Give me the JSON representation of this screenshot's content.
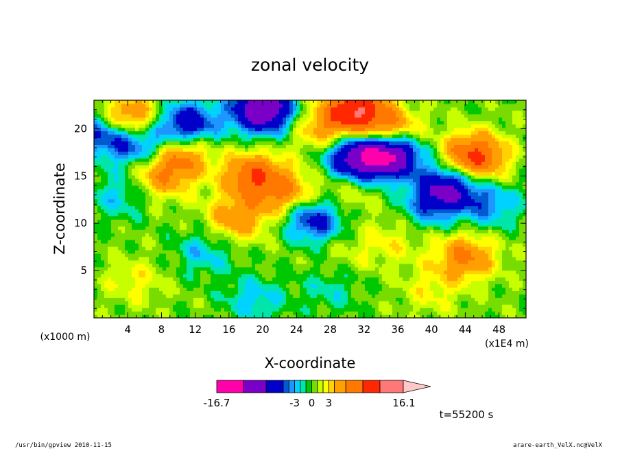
{
  "chart_data": {
    "type": "heatmap",
    "title": "zonal velocity",
    "xlabel": "X-coordinate",
    "ylabel": "Z-coordinate",
    "x_unit_left": "(x1000 m)",
    "x_unit_right": "(x1E4 m)",
    "xlim": [
      0,
      51.2
    ],
    "ylim": [
      0,
      23
    ],
    "x_ticks": [
      "4",
      "8",
      "12",
      "16",
      "20",
      "24",
      "28",
      "32",
      "36",
      "40",
      "44",
      "48"
    ],
    "y_ticks": [
      "5",
      "10",
      "15",
      "20"
    ],
    "colorbar": {
      "min_label": "-16.7",
      "max_label": "16.1",
      "mid_labels": [
        "-3",
        "0",
        "3"
      ],
      "levels": [
        -16.7,
        -12,
        -8,
        -5,
        -4,
        -3,
        -2,
        -1,
        0,
        1,
        2,
        3,
        4,
        6,
        9,
        12,
        16.1
      ],
      "colors": [
        "#ff00aa",
        "#7a00c8",
        "#0000c8",
        "#005ad2",
        "#1e96ff",
        "#00d2ff",
        "#00e6aa",
        "#00c800",
        "#78dc00",
        "#c8ff00",
        "#ffff00",
        "#ffd200",
        "#ffa000",
        "#ff7800",
        "#ff2800",
        "#ff7878",
        "#ffc8c8"
      ]
    },
    "field_features": [
      {
        "x": 20,
        "z": 22,
        "value": -12
      },
      {
        "x": 35,
        "z": 17.5,
        "value": -14
      },
      {
        "x": 31,
        "z": 17,
        "value": -9
      },
      {
        "x": 42,
        "z": 14,
        "value": -8
      },
      {
        "x": 11,
        "z": 20.5,
        "value": -8
      },
      {
        "x": 3,
        "z": 19,
        "value": -5
      },
      {
        "x": 7,
        "z": 18,
        "value": -5
      },
      {
        "x": 0.5,
        "z": 20,
        "value": -4
      },
      {
        "x": 26,
        "z": 10.5,
        "value": -7
      },
      {
        "x": 47,
        "z": 12,
        "value": -4
      },
      {
        "x": 40,
        "z": 12,
        "value": -4
      },
      {
        "x": 19,
        "z": 2,
        "value": -3
      },
      {
        "x": 13,
        "z": 7,
        "value": -3
      },
      {
        "x": 28,
        "z": 3,
        "value": -2
      },
      {
        "x": 3,
        "z": 13,
        "value": -3
      },
      {
        "x": 19,
        "z": 15,
        "value": 8
      },
      {
        "x": 23,
        "z": 13,
        "value": 5
      },
      {
        "x": 17,
        "z": 10.5,
        "value": 5
      },
      {
        "x": 31,
        "z": 22,
        "value": 11
      },
      {
        "x": 35,
        "z": 19.5,
        "value": 8
      },
      {
        "x": 45,
        "z": 17,
        "value": 10
      },
      {
        "x": 44,
        "z": 6.5,
        "value": 6
      },
      {
        "x": 4,
        "z": 21,
        "value": 8
      },
      {
        "x": 10,
        "z": 17.5,
        "value": 7
      },
      {
        "x": 8,
        "z": 15,
        "value": 5
      },
      {
        "x": 27,
        "z": 20,
        "value": 4
      },
      {
        "x": 35,
        "z": 8,
        "value": 2
      },
      {
        "x": 30,
        "z": 13,
        "value": 2
      },
      {
        "x": 5,
        "z": 4,
        "value": 2
      },
      {
        "x": 40,
        "z": 3,
        "value": 2
      },
      {
        "x": 30,
        "z": 7,
        "value": 1
      }
    ]
  },
  "time_label": "t=55200 s",
  "footer": {
    "left": "/usr/bin/gpview  2010-11-15",
    "right": "arare-earth_VelX.nc@VelX"
  }
}
